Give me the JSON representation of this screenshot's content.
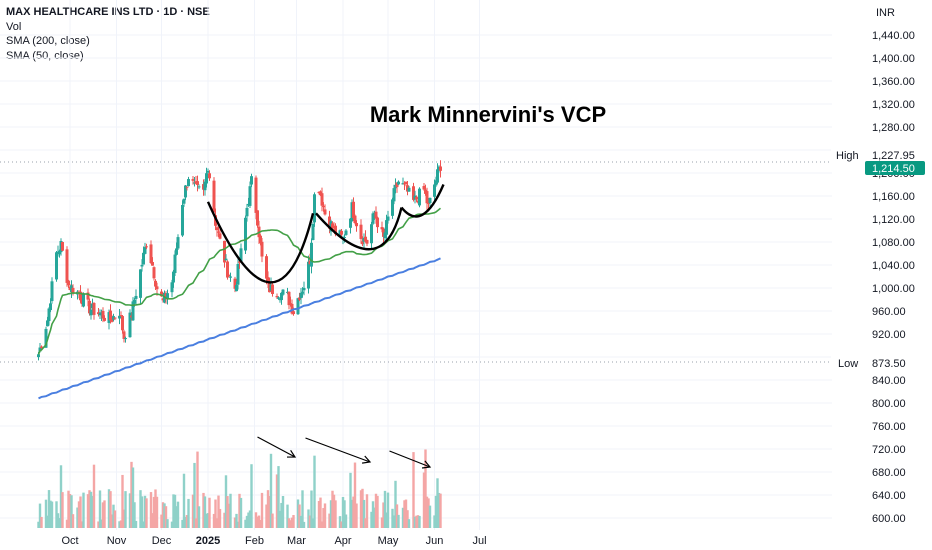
{
  "header": {
    "symbol_line": "MAX HEALTHCARE INS LTD · 1D · NSE",
    "vol_label": "Vol",
    "sma200_label": "SMA (200, close)",
    "sma50_label": "SMA (50, close)",
    "currency": "INR"
  },
  "annotation": {
    "title": "Mark Minnervini's VCP"
  },
  "markers": {
    "high_label": "High",
    "high_value": "1,227.95",
    "last_value": "1,214.50",
    "low_label": "Low",
    "low_value": "873.50"
  },
  "colors": {
    "up": "#26a69a",
    "down": "#ef5350",
    "sma200": "#4a7fe0",
    "sma50": "#43a047",
    "last_badge": "#089981",
    "vol_up": "#8fd1c9",
    "vol_down": "#f4a6a5"
  },
  "chart_data": {
    "type": "candlestick",
    "price_axis": {
      "ticks": [
        600,
        640,
        680,
        720,
        760,
        800,
        840,
        880,
        920,
        960,
        1000,
        1040,
        1080,
        1120,
        1160,
        1200,
        1240,
        1280,
        1320,
        1360,
        1400,
        1440
      ],
      "tick_labels": [
        "600.00",
        "640.00",
        "680.00",
        "720.00",
        "760.00",
        "800.00",
        "840.00",
        "",
        "920.00",
        "960.00",
        "1,000.00",
        "1,040.00",
        "1,080.00",
        "1,120.00",
        "1,160.00",
        "1,200.00",
        "",
        "1,280.00",
        "1,320.00",
        "1,360.00",
        "1,400.00",
        "1,440.00"
      ]
    },
    "time_axis": {
      "labels": [
        "Oct",
        "Nov",
        "Dec",
        "2025",
        "Feb",
        "Mar",
        "Apr",
        "May",
        "Jun",
        "Jul"
      ]
    },
    "keypoints": [
      [
        "2024-09-18",
        885
      ],
      [
        "2024-09-24",
        945
      ],
      [
        "2024-09-30",
        1060
      ],
      [
        "2024-10-03",
        1075
      ],
      [
        "2024-10-08",
        1005
      ],
      [
        "2024-10-15",
        990
      ],
      [
        "2024-10-22",
        965
      ],
      [
        "2024-10-29",
        955
      ],
      [
        "2024-11-05",
        945
      ],
      [
        "2024-11-11",
        960
      ],
      [
        "2024-11-14",
        915
      ],
      [
        "2024-11-19",
        955
      ],
      [
        "2024-11-25",
        1030
      ],
      [
        "2024-11-29",
        1080
      ],
      [
        "2024-12-03",
        1040
      ],
      [
        "2024-12-06",
        1000
      ],
      [
        "2024-12-10",
        975
      ],
      [
        "2024-12-16",
        1010
      ],
      [
        "2024-12-19",
        1070
      ],
      [
        "2024-12-23",
        1150
      ],
      [
        "2024-12-27",
        1195
      ],
      [
        "2025-01-01",
        1170
      ],
      [
        "2025-01-06",
        1165
      ],
      [
        "2025-01-09",
        1215
      ],
      [
        "2025-01-14",
        1115
      ],
      [
        "2025-01-17",
        1080
      ],
      [
        "2025-01-22",
        1030
      ],
      [
        "2025-01-27",
        1000
      ],
      [
        "2025-01-31",
        1060
      ],
      [
        "2025-02-04",
        1140
      ],
      [
        "2025-02-07",
        1185
      ],
      [
        "2025-02-11",
        1120
      ],
      [
        "2025-02-14",
        1050
      ],
      [
        "2025-02-18",
        1000
      ],
      [
        "2025-02-24",
        995
      ],
      [
        "2025-03-03",
        985
      ],
      [
        "2025-03-07",
        960
      ],
      [
        "2025-03-11",
        990
      ],
      [
        "2025-03-14",
        1005
      ],
      [
        "2025-03-18",
        1050
      ],
      [
        "2025-03-21",
        1160
      ],
      [
        "2025-03-24",
        1175
      ],
      [
        "2025-03-28",
        1130
      ],
      [
        "2025-04-03",
        1100
      ],
      [
        "2025-04-09",
        1085
      ],
      [
        "2025-04-15",
        1140
      ],
      [
        "2025-04-21",
        1090
      ],
      [
        "2025-04-25",
        1080
      ],
      [
        "2025-04-30",
        1130
      ],
      [
        "2025-05-06",
        1085
      ],
      [
        "2025-05-12",
        1155
      ],
      [
        "2025-05-16",
        1185
      ],
      [
        "2025-05-20",
        1175
      ],
      [
        "2025-05-26",
        1150
      ],
      [
        "2025-06-02",
        1170
      ],
      [
        "2025-06-05",
        1140
      ],
      [
        "2025-06-09",
        1180
      ],
      [
        "2025-06-13",
        1214.5
      ]
    ]
  }
}
